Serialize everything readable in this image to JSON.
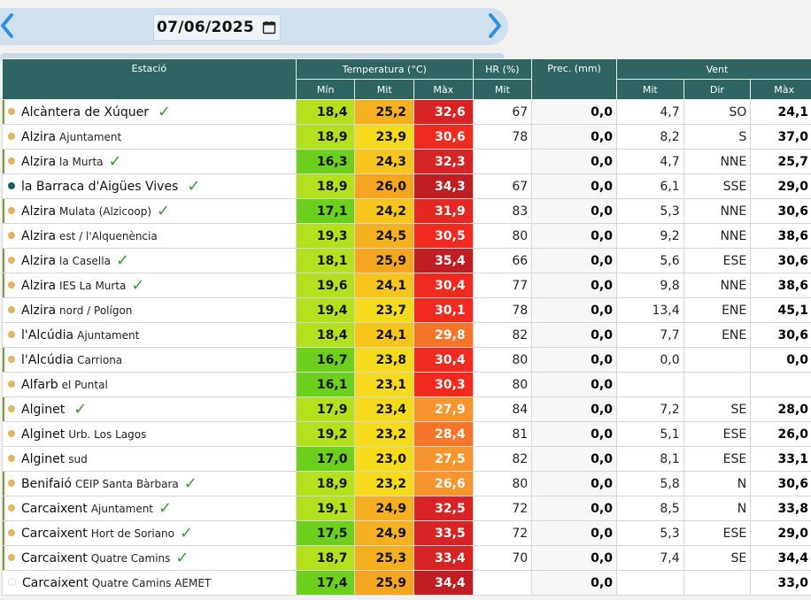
{
  "date_nav": {
    "date_value": "07/06/2025",
    "prev_icon": "chevron-left-icon",
    "next_icon": "chevron-right-icon",
    "calendar_icon": "calendar-icon"
  },
  "table": {
    "headers": {
      "station": "Estació",
      "temperature": "Temperatura (°C)",
      "humidity": "HR (%)",
      "precip": "Prec. (mm)",
      "wind": "Vent",
      "t_min": "Mín",
      "t_mit": "Mit",
      "t_max": "Màx",
      "hr_mit": "Mit",
      "w_mit": "Mit",
      "w_dir": "Dir",
      "w_max": "Màx"
    },
    "colors": {
      "header_bg": "#2e6563",
      "check": "#3a9b35",
      "dot": "#e3b55c",
      "dot_teal": "#1e5f62"
    },
    "rows": [
      {
        "name": "Alcàntera de Xúquer",
        "sub": "",
        "check": true,
        "dot": "gold",
        "bar": true,
        "tmin": "18,4",
        "tmin_c": "#b4e01e",
        "tmit": "25,2",
        "tmit_c": "#f5b020",
        "tmax": "32,6",
        "tmax_c": "#d62323",
        "hr": "67",
        "prec": "0,0",
        "wmit": "4,7",
        "wdir": "SO",
        "wmax": "24,1"
      },
      {
        "name": "Alzira",
        "sub": "Ajuntament",
        "check": false,
        "dot": "gold",
        "bar": false,
        "tmin": "18,9",
        "tmin_c": "#b4e01e",
        "tmit": "23,9",
        "tmit_c": "#f6da1c",
        "tmax": "30,6",
        "tmax_c": "#f02a1e",
        "hr": "78",
        "prec": "0,0",
        "wmit": "8,2",
        "wdir": "S",
        "wmax": "37,0"
      },
      {
        "name": "Alzira",
        "sub": "la Murta",
        "check": true,
        "dot": "gold",
        "bar": true,
        "tmin": "16,3",
        "tmin_c": "#6cd01c",
        "tmit": "24,3",
        "tmit_c": "#f8c51d",
        "tmax": "32,3",
        "tmax_c": "#d62323",
        "hr": "",
        "prec": "0,0",
        "wmit": "4,7",
        "wdir": "NNE",
        "wmax": "25,7"
      },
      {
        "name": "la Barraca d'Aigües Vives",
        "sub": "",
        "check": true,
        "dot": "teal",
        "bar": false,
        "tmin": "18,9",
        "tmin_c": "#b4e01e",
        "tmit": "26,0",
        "tmit_c": "#f5a620",
        "tmax": "34,3",
        "tmax_c": "#bf1f23",
        "hr": "67",
        "prec": "0,0",
        "wmit": "6,1",
        "wdir": "SSE",
        "wmax": "29,0"
      },
      {
        "name": "Alzira",
        "sub": "Mulata (Alzicoop)",
        "check": true,
        "dot": "gold",
        "bar": true,
        "tmin": "17,1",
        "tmin_c": "#6cd01c",
        "tmit": "24,2",
        "tmit_c": "#f8c51d",
        "tmax": "31,9",
        "tmax_c": "#e32722",
        "hr": "83",
        "prec": "0,0",
        "wmit": "5,3",
        "wdir": "NNE",
        "wmax": "30,6"
      },
      {
        "name": "Alzira",
        "sub": "est / l'Alquenència",
        "check": false,
        "dot": "gold",
        "bar": false,
        "tmin": "19,3",
        "tmin_c": "#b4e01e",
        "tmit": "24,5",
        "tmit_c": "#f5b020",
        "tmax": "30,5",
        "tmax_c": "#f02a1e",
        "hr": "80",
        "prec": "0,0",
        "wmit": "9,2",
        "wdir": "NNE",
        "wmax": "38,6"
      },
      {
        "name": "Alzira",
        "sub": "la Casella",
        "check": true,
        "dot": "gold",
        "bar": true,
        "tmin": "18,1",
        "tmin_c": "#b4e01e",
        "tmit": "25,9",
        "tmit_c": "#f5a620",
        "tmax": "35,4",
        "tmax_c": "#bf1f23",
        "hr": "66",
        "prec": "0,0",
        "wmit": "5,6",
        "wdir": "ESE",
        "wmax": "30,6"
      },
      {
        "name": "Alzira",
        "sub": "IES La Murta",
        "check": true,
        "dot": "gold",
        "bar": true,
        "tmin": "19,6",
        "tmin_c": "#b4e01e",
        "tmit": "24,1",
        "tmit_c": "#f8c51d",
        "tmax": "30,4",
        "tmax_c": "#f02a1e",
        "hr": "77",
        "prec": "0,0",
        "wmit": "9,8",
        "wdir": "NNE",
        "wmax": "38,6"
      },
      {
        "name": "Alzira",
        "sub": "nord / Polígon",
        "check": false,
        "dot": "gold",
        "bar": false,
        "tmin": "19,4",
        "tmin_c": "#b4e01e",
        "tmit": "23,7",
        "tmit_c": "#f6da1c",
        "tmax": "30,1",
        "tmax_c": "#f02a1e",
        "hr": "78",
        "prec": "0,0",
        "wmit": "13,4",
        "wdir": "ENE",
        "wmax": "45,1"
      },
      {
        "name": "l'Alcúdia",
        "sub": "Ajuntament",
        "check": false,
        "dot": "gold",
        "bar": false,
        "tmin": "18,4",
        "tmin_c": "#b4e01e",
        "tmit": "24,1",
        "tmit_c": "#f8c51d",
        "tmax": "29,8",
        "tmax_c": "#f5752a",
        "hr": "82",
        "prec": "0,0",
        "wmit": "7,7",
        "wdir": "ENE",
        "wmax": "30,6"
      },
      {
        "name": "l'Alcúdia",
        "sub": "Carriona",
        "check": false,
        "dot": "gold",
        "bar": true,
        "tmin": "16,7",
        "tmin_c": "#6cd01c",
        "tmit": "23,8",
        "tmit_c": "#f6da1c",
        "tmax": "30,4",
        "tmax_c": "#f02a1e",
        "hr": "80",
        "prec": "0,0",
        "wmit": "0,0",
        "wdir": "",
        "wmax": "0,0"
      },
      {
        "name": "Alfarb",
        "sub": "el Puntal",
        "check": false,
        "dot": "gold",
        "bar": false,
        "tmin": "16,1",
        "tmin_c": "#6cd01c",
        "tmit": "23,1",
        "tmit_c": "#f6da1c",
        "tmax": "30,3",
        "tmax_c": "#f02a1e",
        "hr": "80",
        "prec": "0,0",
        "wmit": "",
        "wdir": "",
        "wmax": ""
      },
      {
        "name": "Alginet",
        "sub": "",
        "check": true,
        "dot": "gold",
        "bar": true,
        "tmin": "17,9",
        "tmin_c": "#b4e01e",
        "tmit": "23,4",
        "tmit_c": "#f6da1c",
        "tmax": "27,9",
        "tmax_c": "#f6952e",
        "hr": "84",
        "prec": "0,0",
        "wmit": "7,2",
        "wdir": "SE",
        "wmax": "28,0"
      },
      {
        "name": "Alginet",
        "sub": "Urb. Los Lagos",
        "check": false,
        "dot": "gold",
        "bar": false,
        "tmin": "19,2",
        "tmin_c": "#b4e01e",
        "tmit": "23,2",
        "tmit_c": "#f6da1c",
        "tmax": "28,4",
        "tmax_c": "#f5752a",
        "hr": "81",
        "prec": "0,0",
        "wmit": "5,1",
        "wdir": "ESE",
        "wmax": "26,0"
      },
      {
        "name": "Alginet",
        "sub": "sud",
        "check": false,
        "dot": "gold",
        "bar": false,
        "tmin": "17,0",
        "tmin_c": "#6cd01c",
        "tmit": "23,0",
        "tmit_c": "#f6da1c",
        "tmax": "27,5",
        "tmax_c": "#f6952e",
        "hr": "82",
        "prec": "0,0",
        "wmit": "8,1",
        "wdir": "ESE",
        "wmax": "33,1"
      },
      {
        "name": "Benifaió",
        "sub": "CEIP Santa Bàrbara",
        "check": true,
        "dot": "gold",
        "bar": true,
        "tmin": "18,9",
        "tmin_c": "#b4e01e",
        "tmit": "23,2",
        "tmit_c": "#f6da1c",
        "tmax": "26,6",
        "tmax_c": "#f6952e",
        "hr": "80",
        "prec": "0,0",
        "wmit": "5,8",
        "wdir": "N",
        "wmax": "30,6"
      },
      {
        "name": "Carcaixent",
        "sub": "Ajuntament",
        "check": true,
        "dot": "gold",
        "bar": true,
        "tmin": "19,1",
        "tmin_c": "#b4e01e",
        "tmit": "24,9",
        "tmit_c": "#f5b020",
        "tmax": "32,5",
        "tmax_c": "#d62323",
        "hr": "72",
        "prec": "0,0",
        "wmit": "8,5",
        "wdir": "N",
        "wmax": "33,8"
      },
      {
        "name": "Carcaixent",
        "sub": "Hort de Soriano",
        "check": true,
        "dot": "gold",
        "bar": true,
        "tmin": "17,5",
        "tmin_c": "#6cd01c",
        "tmit": "24,9",
        "tmit_c": "#f5b020",
        "tmax": "33,5",
        "tmax_c": "#d62323",
        "hr": "72",
        "prec": "0,0",
        "wmit": "5,3",
        "wdir": "ESE",
        "wmax": "29,0"
      },
      {
        "name": "Carcaixent",
        "sub": "Quatre Camins",
        "check": true,
        "dot": "gold",
        "bar": true,
        "tmin": "18,7",
        "tmin_c": "#b4e01e",
        "tmit": "25,3",
        "tmit_c": "#f5b020",
        "tmax": "33,4",
        "tmax_c": "#d62323",
        "hr": "70",
        "prec": "0,0",
        "wmit": "7,4",
        "wdir": "SE",
        "wmax": "34,4"
      },
      {
        "name": "Carcaixent",
        "sub": "Quatre Camins AEMET",
        "check": false,
        "dot": "hollow",
        "bar": false,
        "tmin": "17,4",
        "tmin_c": "#6cd01c",
        "tmit": "25,9",
        "tmit_c": "#f5a620",
        "tmax": "34,4",
        "tmax_c": "#bf1f23",
        "hr": "",
        "prec": "0,0",
        "wmit": "",
        "wdir": "",
        "wmax": "33,0"
      }
    ]
  }
}
